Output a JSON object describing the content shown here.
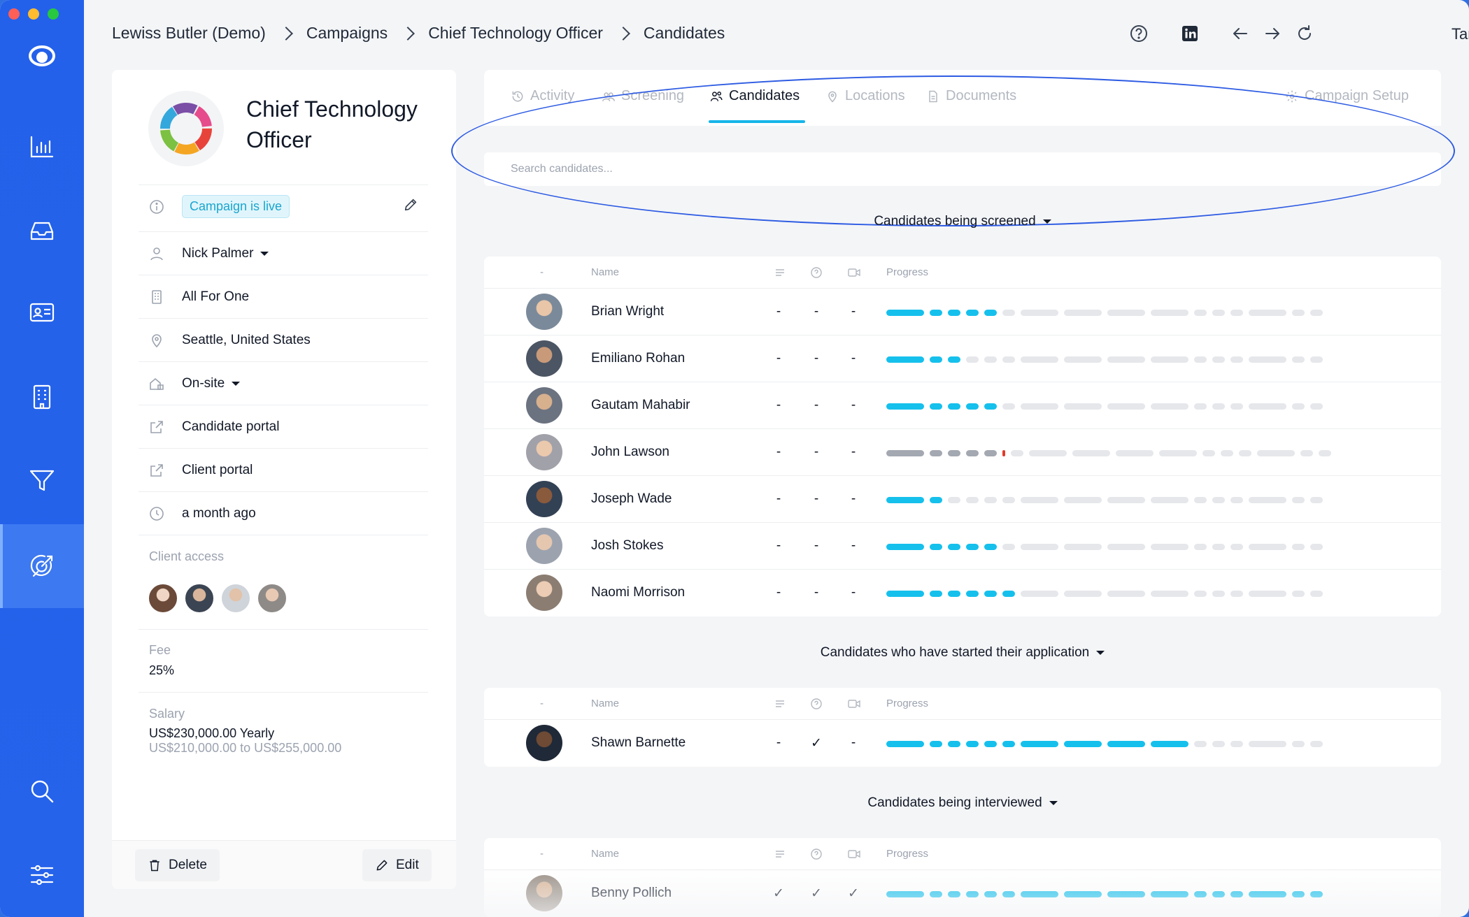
{
  "breadcrumbs": [
    "Lewiss Butler (Demo)",
    "Campaigns",
    "Chief Technology Officer",
    "Candidates"
  ],
  "user": {
    "name": "Tam"
  },
  "job": {
    "title": "Chief Technology Officer",
    "status": "Campaign is live",
    "owner": "Nick Palmer",
    "company": "All For One",
    "location": "Seattle, United States",
    "work_mode": "On-site",
    "candidate_portal": "Candidate portal",
    "client_portal": "Client portal",
    "created": "a month ago",
    "client_access_label": "Client access",
    "fee_label": "Fee",
    "fee_value": "25%",
    "salary_label": "Salary",
    "salary_value": "US$230,000.00 Yearly",
    "salary_range": "US$210,000.00 to US$255,000.00",
    "delete_label": "Delete",
    "edit_label": "Edit"
  },
  "tabs": {
    "activity": "Activity",
    "screening": "Screening",
    "candidates": "Candidates",
    "locations": "Locations",
    "documents": "Documents",
    "setup": "Campaign Setup"
  },
  "search": {
    "placeholder": "Search candidates..."
  },
  "columns": {
    "dash": "-",
    "name": "Name",
    "progress": "Progress"
  },
  "groups": [
    {
      "title": "Candidates being screened",
      "rows": [
        {
          "name": "Brian Wright",
          "c1": "-",
          "c2": "-",
          "c3": "-",
          "progress": 5
        },
        {
          "name": "Emiliano Rohan",
          "c1": "-",
          "c2": "-",
          "c3": "-",
          "progress": 3
        },
        {
          "name": "Gautam Mahabir",
          "c1": "-",
          "c2": "-",
          "c3": "-",
          "progress": 5
        },
        {
          "name": "John Lawson",
          "c1": "-",
          "c2": "-",
          "c3": "-",
          "progress": 0,
          "rejected_at": 5
        },
        {
          "name": "Joseph Wade",
          "c1": "-",
          "c2": "-",
          "c3": "-",
          "progress": 2
        },
        {
          "name": "Josh Stokes",
          "c1": "-",
          "c2": "-",
          "c3": "-",
          "progress": 5
        },
        {
          "name": "Naomi Morrison",
          "c1": "-",
          "c2": "-",
          "c3": "-",
          "progress": 6
        }
      ]
    },
    {
      "title": "Candidates who have started their application",
      "rows": [
        {
          "name": "Shawn Barnette",
          "c1": "-",
          "c2": "✓",
          "c3": "-",
          "progress": 10
        }
      ]
    },
    {
      "title": "Candidates being interviewed",
      "rows": [
        {
          "name": "Benny Pollich",
          "c1": "✓",
          "c2": "✓",
          "c3": "✓",
          "progress": 16
        }
      ]
    }
  ],
  "colors": {
    "sidebar": "#2563eb",
    "accent": "#16c0ec",
    "live_badge": "#1aa5cf"
  }
}
